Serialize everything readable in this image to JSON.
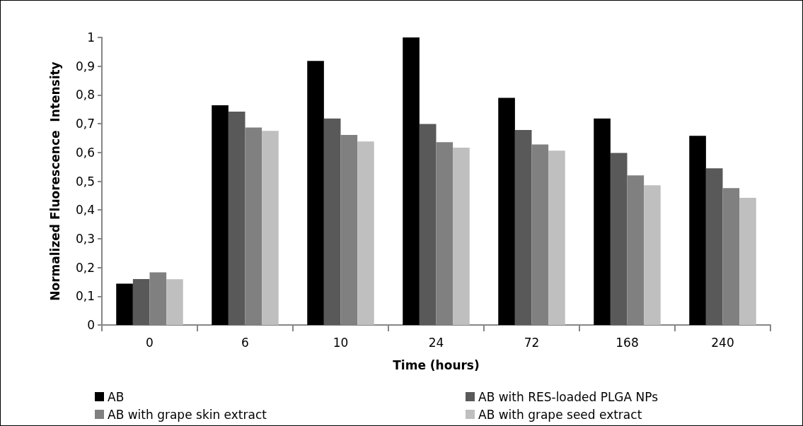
{
  "chart_data": {
    "type": "bar",
    "xlabel": "Time (hours)",
    "ylabel": "Normalized Fluorescence  Intensity",
    "categories": [
      "0",
      "6",
      "10",
      "24",
      "72",
      "168",
      "240"
    ],
    "series": [
      {
        "name": "AB",
        "color": "#000000",
        "values": [
          0.144,
          0.764,
          0.918,
          1.0,
          0.79,
          0.718,
          0.658
        ]
      },
      {
        "name": "AB with RES-loaded PLGA NPs",
        "color": "#595959",
        "values": [
          0.16,
          0.742,
          0.718,
          0.699,
          0.678,
          0.598,
          0.545
        ]
      },
      {
        "name": "AB with grape skin extract",
        "color": "#808080",
        "values": [
          0.183,
          0.687,
          0.661,
          0.636,
          0.628,
          0.52,
          0.476
        ]
      },
      {
        "name": "AB with grape seed extract",
        "color": "#bfbfbf",
        "values": [
          0.159,
          0.675,
          0.638,
          0.617,
          0.606,
          0.486,
          0.442
        ]
      }
    ],
    "ylim": [
      0,
      1
    ],
    "yticks": [
      0,
      {
        "value": 0.1,
        "label": "0,1"
      },
      {
        "value": 0.2,
        "label": "0,2"
      },
      {
        "value": 0.3,
        "label": "0,3"
      },
      {
        "value": 0.4,
        "label": "0,4"
      },
      {
        "value": 0.5,
        "label": "0,5"
      },
      {
        "value": 0.6,
        "label": "0,6"
      },
      {
        "value": 0.7,
        "label": "0,7"
      },
      {
        "value": 0.8,
        "label": "0,8"
      },
      {
        "value": 0.9,
        "label": "0,9"
      },
      1
    ],
    "grid": false,
    "legend": "bottom"
  }
}
